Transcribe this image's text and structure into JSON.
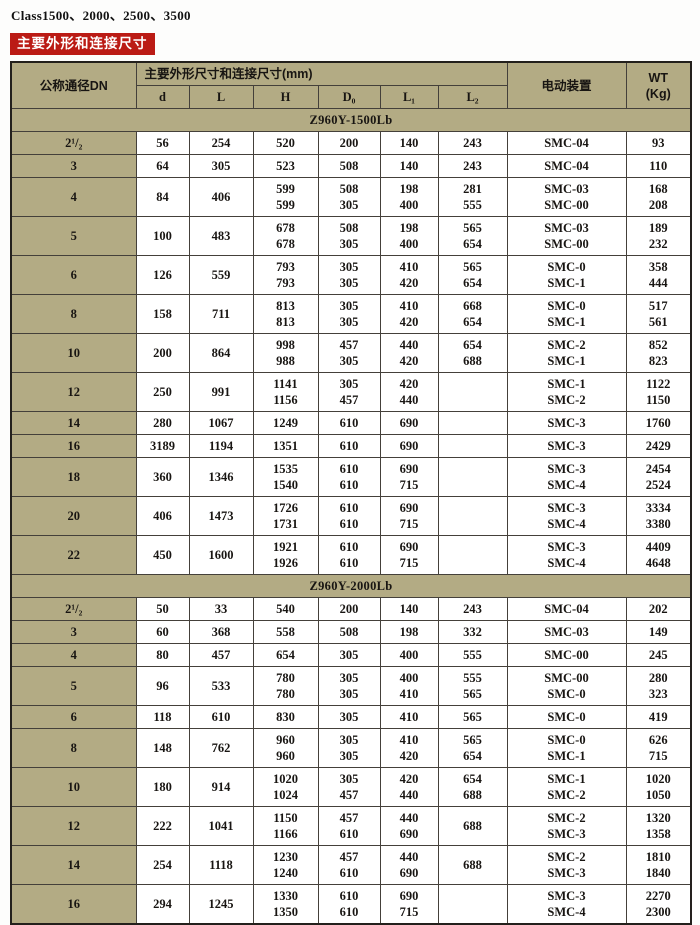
{
  "title": "Class1500、2000、2500、3500",
  "banner": "主要外形和连接尺寸",
  "colors": {
    "khaki": "#b3ab84",
    "banner_red": "#bb1b15",
    "border": "#44403a",
    "page_bg": "#fdfdfc"
  },
  "table": {
    "headers": {
      "dn": "公称通径DN",
      "group": "主要外形尺寸和连接尺寸(mm)",
      "sub": [
        "d",
        "L",
        "H",
        "D₀",
        "L₁",
        "L₂"
      ],
      "device": "电动装置",
      "wt_line1": "WT",
      "wt_line2": "(Kg)"
    },
    "sections": [
      {
        "title": "Z960Y-1500Lb",
        "rows": [
          {
            "dn": "2¹/₂",
            "d": "56",
            "l": "254",
            "h": "520",
            "d0": "200",
            "l1": "140",
            "l2": "243",
            "device": "SMC-04",
            "wt": "93"
          },
          {
            "dn": "3",
            "d": "64",
            "l": "305",
            "h": "523",
            "d0": "508",
            "l1": "140",
            "l2": "243",
            "device": "SMC-04",
            "wt": "110"
          },
          {
            "dn": "4",
            "d": "84",
            "l": "406",
            "h": [
              "599",
              "599"
            ],
            "d0": [
              "508",
              "305"
            ],
            "l1": [
              "198",
              "400"
            ],
            "l2": [
              "281",
              "555"
            ],
            "device": [
              "SMC-03",
              "SMC-00"
            ],
            "wt": [
              "168",
              "208"
            ]
          },
          {
            "dn": "5",
            "d": "100",
            "l": "483",
            "h": [
              "678",
              "678"
            ],
            "d0": [
              "508",
              "305"
            ],
            "l1": [
              "198",
              "400"
            ],
            "l2": [
              "565",
              "654"
            ],
            "device": [
              "SMC-03",
              "SMC-00"
            ],
            "wt": [
              "189",
              "232"
            ]
          },
          {
            "dn": "6",
            "d": "126",
            "l": "559",
            "h": [
              "793",
              "793"
            ],
            "d0": [
              "305",
              "305"
            ],
            "l1": [
              "410",
              "420"
            ],
            "l2": [
              "565",
              "654"
            ],
            "device": [
              "SMC-0",
              "SMC-1"
            ],
            "wt": [
              "358",
              "444"
            ]
          },
          {
            "dn": "8",
            "d": "158",
            "l": "711",
            "h": [
              "813",
              "813"
            ],
            "d0": [
              "305",
              "305"
            ],
            "l1": [
              "410",
              "420"
            ],
            "l2": [
              "668",
              "654"
            ],
            "device": [
              "SMC-0",
              "SMC-1"
            ],
            "wt": [
              "517",
              "561"
            ]
          },
          {
            "dn": "10",
            "d": "200",
            "l": "864",
            "h": [
              "998",
              "988"
            ],
            "d0": [
              "457",
              "305"
            ],
            "l1": [
              "440",
              "420"
            ],
            "l2": [
              "654",
              "688"
            ],
            "device": [
              "SMC-2",
              "SMC-1"
            ],
            "wt": [
              "852",
              "823"
            ]
          },
          {
            "dn": "12",
            "d": "250",
            "l": "991",
            "h": [
              "1141",
              "1156"
            ],
            "d0": [
              "305",
              "457"
            ],
            "l1": [
              "420",
              "440"
            ],
            "l2": "",
            "device": [
              "SMC-1",
              "SMC-2"
            ],
            "wt": [
              "1122",
              "1150"
            ]
          },
          {
            "dn": "14",
            "d": "280",
            "l": "1067",
            "h": "1249",
            "d0": "610",
            "l1": "690",
            "l2": "",
            "device": "SMC-3",
            "wt": "1760"
          },
          {
            "dn": "16",
            "d": "3189",
            "l": "1194",
            "h": "1351",
            "d0": "610",
            "l1": "690",
            "l2": "",
            "device": "SMC-3",
            "wt": "2429"
          },
          {
            "dn": "18",
            "d": "360",
            "l": "1346",
            "h": [
              "1535",
              "1540"
            ],
            "d0": [
              "610",
              "610"
            ],
            "l1": [
              "690",
              "715"
            ],
            "l2": "",
            "device": [
              "SMC-3",
              "SMC-4"
            ],
            "wt": [
              "2454",
              "2524"
            ]
          },
          {
            "dn": "20",
            "d": "406",
            "l": "1473",
            "h": [
              "1726",
              "1731"
            ],
            "d0": [
              "610",
              "610"
            ],
            "l1": [
              "690",
              "715"
            ],
            "l2": "",
            "device": [
              "SMC-3",
              "SMC-4"
            ],
            "wt": [
              "3334",
              "3380"
            ]
          },
          {
            "dn": "22",
            "d": "450",
            "l": "1600",
            "h": [
              "1921",
              "1926"
            ],
            "d0": [
              "610",
              "610"
            ],
            "l1": [
              "690",
              "715"
            ],
            "l2": "",
            "device": [
              "SMC-3",
              "SMC-4"
            ],
            "wt": [
              "4409",
              "4648"
            ]
          }
        ]
      },
      {
        "title": "Z960Y-2000Lb",
        "rows": [
          {
            "dn": "2¹/₂",
            "d": "50",
            "l": "33",
            "h": "540",
            "d0": "200",
            "l1": "140",
            "l2": "243",
            "device": "SMC-04",
            "wt": "202"
          },
          {
            "dn": "3",
            "d": "60",
            "l": "368",
            "h": "558",
            "d0": "508",
            "l1": "198",
            "l2": "332",
            "device": "SMC-03",
            "wt": "149"
          },
          {
            "dn": "4",
            "d": "80",
            "l": "457",
            "h": "654",
            "d0": "305",
            "l1": "400",
            "l2": "555",
            "device": "SMC-00",
            "wt": "245"
          },
          {
            "dn": "5",
            "d": "96",
            "l": "533",
            "h": [
              "780",
              "780"
            ],
            "d0": [
              "305",
              "305"
            ],
            "l1": [
              "400",
              "410"
            ],
            "l2": [
              "555",
              "565"
            ],
            "device": [
              "SMC-00",
              "SMC-0"
            ],
            "wt": [
              "280",
              "323"
            ]
          },
          {
            "dn": "6",
            "d": "118",
            "l": "610",
            "h": "830",
            "d0": "305",
            "l1": "410",
            "l2": "565",
            "device": "SMC-0",
            "wt": "419"
          },
          {
            "dn": "8",
            "d": "148",
            "l": "762",
            "h": [
              "960",
              "960"
            ],
            "d0": [
              "305",
              "305"
            ],
            "l1": [
              "410",
              "420"
            ],
            "l2": [
              "565",
              "654"
            ],
            "device": [
              "SMC-0",
              "SMC-1"
            ],
            "wt": [
              "626",
              "715"
            ]
          },
          {
            "dn": "10",
            "d": "180",
            "l": "914",
            "h": [
              "1020",
              "1024"
            ],
            "d0": [
              "305",
              "457"
            ],
            "l1": [
              "420",
              "440"
            ],
            "l2": [
              "654",
              "688"
            ],
            "device": [
              "SMC-1",
              "SMC-2"
            ],
            "wt": [
              "1020",
              "1050"
            ]
          },
          {
            "dn": "12",
            "d": "222",
            "l": "1041",
            "h": [
              "1150",
              "1166"
            ],
            "d0": [
              "457",
              "610"
            ],
            "l1": [
              "440",
              "690"
            ],
            "l2": "688",
            "device": [
              "SMC-2",
              "SMC-3"
            ],
            "wt": [
              "1320",
              "1358"
            ]
          },
          {
            "dn": "14",
            "d": "254",
            "l": "1118",
            "h": [
              "1230",
              "1240"
            ],
            "d0": [
              "457",
              "610"
            ],
            "l1": [
              "440",
              "690"
            ],
            "l2": "688",
            "device": [
              "SMC-2",
              "SMC-3"
            ],
            "wt": [
              "1810",
              "1840"
            ]
          },
          {
            "dn": "16",
            "d": "294",
            "l": "1245",
            "h": [
              "1330",
              "1350"
            ],
            "d0": [
              "610",
              "610"
            ],
            "l1": [
              "690",
              "715"
            ],
            "l2": "",
            "device": [
              "SMC-3",
              "SMC-4"
            ],
            "wt": [
              "2270",
              "2300"
            ]
          }
        ]
      }
    ]
  }
}
